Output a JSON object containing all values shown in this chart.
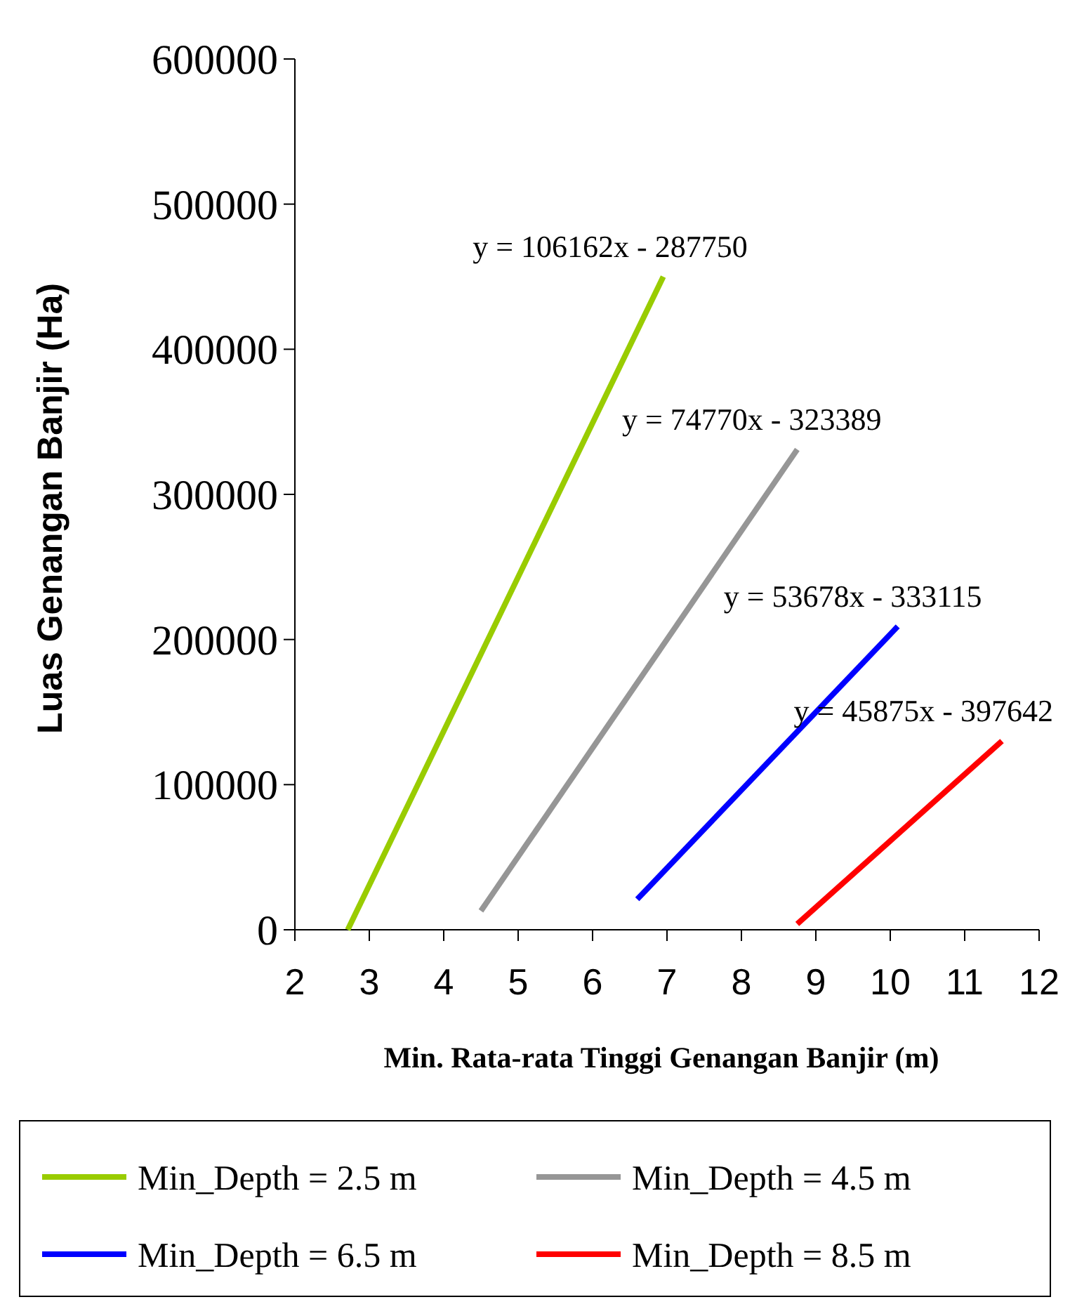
{
  "chart_data": {
    "type": "line",
    "xlabel": "Min. Rata-rata Tinggi Genangan Banjir (m)",
    "ylabel": "Luas Genangan Banjir (Ha)",
    "xlim": [
      2,
      12
    ],
    "xticks": [
      2,
      3,
      4,
      5,
      6,
      7,
      8,
      9,
      10,
      11,
      12
    ],
    "ylim": [
      0,
      600000
    ],
    "yticks": [
      0,
      100000,
      200000,
      300000,
      400000,
      500000,
      600000
    ],
    "series": [
      {
        "name": "Min_Depth = 2.5 m",
        "color": "#99cc00",
        "x": [
          2.71,
          6.95
        ],
        "values": [
          0,
          450000
        ]
      },
      {
        "name": "Min_Depth = 4.5 m",
        "color": "#969696",
        "x": [
          4.5,
          8.75
        ],
        "values": [
          13000,
          331000
        ]
      },
      {
        "name": "Min_Depth = 6.5 m",
        "color": "#0000ff",
        "x": [
          6.6,
          10.1
        ],
        "values": [
          21000,
          209000
        ]
      },
      {
        "name": "Min_Depth = 8.5 m",
        "color": "#ff0000",
        "x": [
          8.75,
          11.5
        ],
        "values": [
          4000,
          130000
        ]
      }
    ],
    "annotations": [
      {
        "text": "y = 106162x - 287750",
        "x": 6.95,
        "y": 450000
      },
      {
        "text": "y = 74770x - 323389",
        "x": 8.75,
        "y": 331000
      },
      {
        "text": "y = 53678x - 333115",
        "x": 10.1,
        "y": 209000
      },
      {
        "text": "y = 45875x - 397642",
        "x": 11.5,
        "y": 130000
      }
    ],
    "grid": false,
    "legend": "bottom",
    "marker": "none",
    "line_style": "solid"
  }
}
